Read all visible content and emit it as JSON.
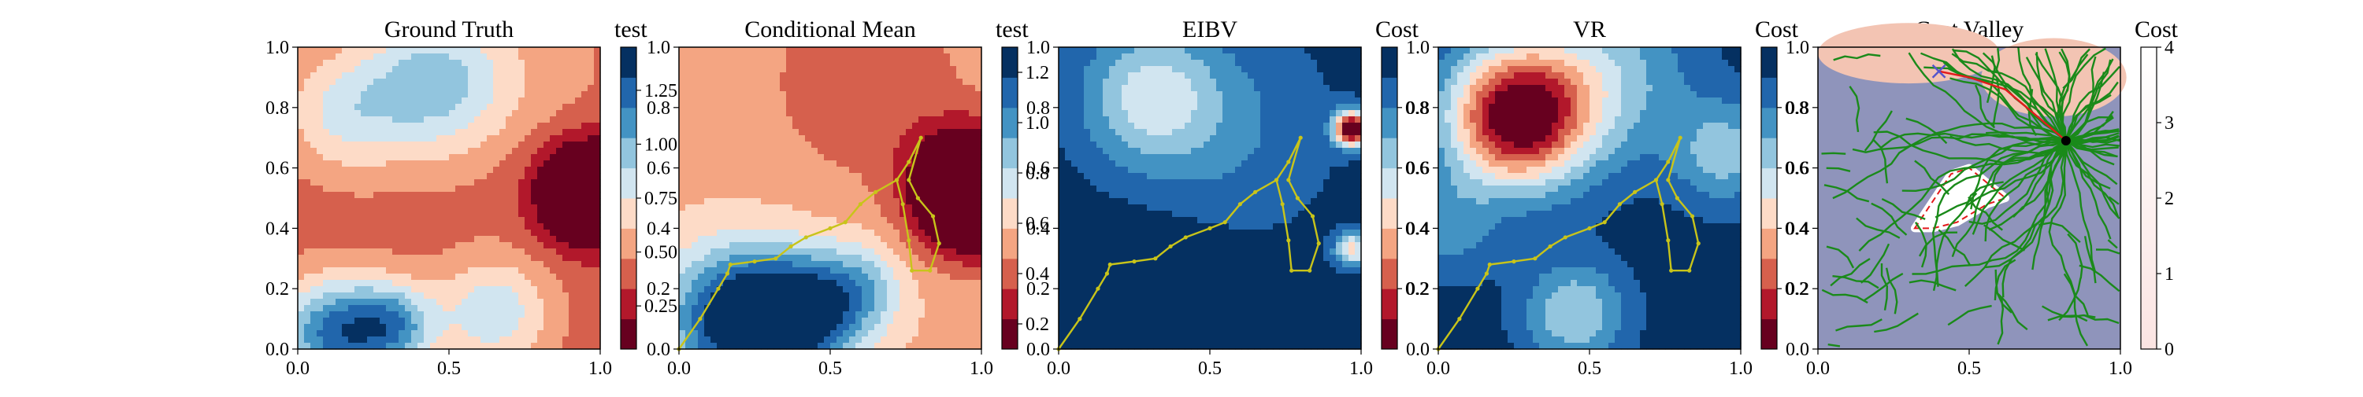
{
  "palette": [
    "#67001f",
    "#b2182b",
    "#d6604d",
    "#f4a582",
    "#fddbc7",
    "#d1e5f0",
    "#92c5de",
    "#4393c3",
    "#2166ac",
    "#053061"
  ],
  "chart_data": [
    {
      "id": "p1",
      "type": "heatmap",
      "title": "Ground Truth",
      "colorbar_label": "test",
      "xlim": [
        0,
        1
      ],
      "ylim": [
        0,
        1
      ],
      "x_ticks": [
        "0.0",
        "0.5",
        "1.0"
      ],
      "y_ticks": [
        "0.0",
        "0.2",
        "0.4",
        "0.6",
        "0.8",
        "1.0"
      ],
      "colorbar_ticks": [
        "0.25",
        "0.50",
        "0.75",
        "1.00",
        "1.25"
      ],
      "colorbar_range": [
        0.05,
        1.45
      ],
      "field": {
        "base": 0.4,
        "blobs": [
          {
            "x": 0.96,
            "y": 0.52,
            "amp": -0.95,
            "s": 0.11
          },
          {
            "x": 0.45,
            "y": 0.88,
            "amp": 0.55,
            "s": 0.17
          },
          {
            "x": 0.15,
            "y": 0.78,
            "amp": 0.35,
            "s": 0.14
          },
          {
            "x": 0.12,
            "y": 0.05,
            "amp": 0.8,
            "s": 0.13
          },
          {
            "x": 0.32,
            "y": 0.08,
            "amp": 0.6,
            "s": 0.1
          },
          {
            "x": 0.65,
            "y": 0.12,
            "amp": 0.45,
            "s": 0.13
          },
          {
            "x": 0.8,
            "y": 0.92,
            "amp": 0.1,
            "s": 0.2
          }
        ]
      },
      "path": []
    },
    {
      "id": "p2",
      "type": "heatmap",
      "title": "Conditional Mean",
      "colorbar_label": "test",
      "xlim": [
        0,
        1
      ],
      "ylim": [
        0,
        1
      ],
      "x_ticks": [
        "0.0",
        "0.5",
        "1.0"
      ],
      "y_ticks": [
        "0.0",
        "0.2",
        "0.4",
        "0.6",
        "0.8",
        "1.0"
      ],
      "colorbar_ticks": [
        "0.2",
        "0.4",
        "0.6",
        "0.8",
        "1.0",
        "1.2"
      ],
      "colorbar_range": [
        0.1,
        1.3
      ],
      "field": {
        "base": 0.55,
        "blobs": [
          {
            "x": 0.97,
            "y": 0.52,
            "amp": -1.15,
            "s": 0.13
          },
          {
            "x": 0.62,
            "y": 0.88,
            "amp": -0.2,
            "s": 0.22
          },
          {
            "x": 0.2,
            "y": 0.1,
            "amp": 0.8,
            "s": 0.16
          },
          {
            "x": 0.42,
            "y": 0.12,
            "amp": 0.6,
            "s": 0.13
          },
          {
            "x": 0.6,
            "y": 0.2,
            "amp": 0.3,
            "s": 0.1
          }
        ]
      },
      "path": [
        [
          0,
          0
        ],
        [
          0.07,
          0.1
        ],
        [
          0.13,
          0.2
        ],
        [
          0.16,
          0.25
        ],
        [
          0.17,
          0.28
        ],
        [
          0.25,
          0.29
        ],
        [
          0.32,
          0.3
        ],
        [
          0.37,
          0.34
        ],
        [
          0.42,
          0.37
        ],
        [
          0.5,
          0.4
        ],
        [
          0.55,
          0.42
        ],
        [
          0.6,
          0.48
        ],
        [
          0.65,
          0.52
        ],
        [
          0.72,
          0.56
        ],
        [
          0.76,
          0.62
        ],
        [
          0.8,
          0.7
        ],
        [
          0.76,
          0.56
        ],
        [
          0.79,
          0.5
        ],
        [
          0.84,
          0.44
        ],
        [
          0.86,
          0.35
        ],
        [
          0.83,
          0.26
        ],
        [
          0.77,
          0.26
        ],
        [
          0.76,
          0.36
        ],
        [
          0.74,
          0.48
        ],
        [
          0.72,
          0.56
        ]
      ]
    },
    {
      "id": "p3",
      "type": "heatmap",
      "title": "EIBV",
      "colorbar_label": "Cost",
      "xlim": [
        0,
        1
      ],
      "ylim": [
        0,
        1
      ],
      "x_ticks": [
        "0.0",
        "0.5",
        "1.0"
      ],
      "y_ticks": [
        "0.0",
        "0.2",
        "0.4",
        "0.6",
        "0.8",
        "1.0"
      ],
      "colorbar_ticks": [
        "0.2",
        "0.4",
        "0.6",
        "0.8"
      ],
      "colorbar_range": [
        0.0,
        1.0
      ],
      "field": {
        "base": 0.95,
        "blobs": [
          {
            "x": 0.3,
            "y": 0.84,
            "amp": -0.35,
            "s": 0.16
          },
          {
            "x": 0.55,
            "y": 0.72,
            "amp": -0.15,
            "s": 0.25
          },
          {
            "x": 0.97,
            "y": 0.73,
            "amp": -1.0,
            "s": 0.04
          },
          {
            "x": 0.97,
            "y": 0.33,
            "amp": -0.5,
            "s": 0.04
          },
          {
            "x": 0.3,
            "y": 0.1,
            "amp": 0.15,
            "s": 0.2
          }
        ]
      },
      "path": [
        [
          0,
          0
        ],
        [
          0.07,
          0.1
        ],
        [
          0.13,
          0.2
        ],
        [
          0.16,
          0.25
        ],
        [
          0.17,
          0.28
        ],
        [
          0.25,
          0.29
        ],
        [
          0.32,
          0.3
        ],
        [
          0.37,
          0.34
        ],
        [
          0.42,
          0.37
        ],
        [
          0.5,
          0.4
        ],
        [
          0.55,
          0.42
        ],
        [
          0.6,
          0.48
        ],
        [
          0.65,
          0.52
        ],
        [
          0.72,
          0.56
        ],
        [
          0.76,
          0.62
        ],
        [
          0.8,
          0.7
        ],
        [
          0.76,
          0.56
        ],
        [
          0.79,
          0.5
        ],
        [
          0.84,
          0.44
        ],
        [
          0.86,
          0.35
        ],
        [
          0.83,
          0.26
        ],
        [
          0.77,
          0.26
        ],
        [
          0.76,
          0.36
        ],
        [
          0.74,
          0.48
        ],
        [
          0.72,
          0.56
        ]
      ]
    },
    {
      "id": "p4",
      "type": "heatmap",
      "title": "VR",
      "colorbar_label": "Cost",
      "xlim": [
        0,
        1
      ],
      "ylim": [
        0,
        1
      ],
      "x_ticks": [
        "0.0",
        "0.5",
        "1.0"
      ],
      "y_ticks": [
        "0.0",
        "0.2",
        "0.4",
        "0.6",
        "0.8",
        "1.0"
      ],
      "colorbar_ticks": [
        "0.2",
        "0.4",
        "0.6",
        "0.8"
      ],
      "colorbar_range": [
        0.0,
        1.0
      ],
      "field": {
        "base": 0.95,
        "blobs": [
          {
            "x": 0.26,
            "y": 0.77,
            "amp": -0.95,
            "s": 0.16
          },
          {
            "x": 0.55,
            "y": 0.9,
            "amp": -0.3,
            "s": 0.2
          },
          {
            "x": 0.45,
            "y": 0.12,
            "amp": -0.35,
            "s": 0.12
          },
          {
            "x": 0.95,
            "y": 0.65,
            "amp": -0.3,
            "s": 0.12
          },
          {
            "x": 0.02,
            "y": 0.4,
            "amp": -0.2,
            "s": 0.12
          }
        ]
      },
      "path": [
        [
          0,
          0
        ],
        [
          0.07,
          0.1
        ],
        [
          0.13,
          0.2
        ],
        [
          0.16,
          0.25
        ],
        [
          0.17,
          0.28
        ],
        [
          0.25,
          0.29
        ],
        [
          0.32,
          0.3
        ],
        [
          0.37,
          0.34
        ],
        [
          0.42,
          0.37
        ],
        [
          0.5,
          0.4
        ],
        [
          0.55,
          0.42
        ],
        [
          0.6,
          0.48
        ],
        [
          0.65,
          0.52
        ],
        [
          0.72,
          0.56
        ],
        [
          0.76,
          0.62
        ],
        [
          0.8,
          0.7
        ],
        [
          0.76,
          0.56
        ],
        [
          0.79,
          0.5
        ],
        [
          0.84,
          0.44
        ],
        [
          0.86,
          0.35
        ],
        [
          0.83,
          0.26
        ],
        [
          0.77,
          0.26
        ],
        [
          0.76,
          0.36
        ],
        [
          0.74,
          0.48
        ],
        [
          0.72,
          0.56
        ]
      ]
    },
    {
      "id": "p5",
      "type": "heatmap",
      "title": "Cost Valley",
      "colorbar_label": "Cost",
      "xlim": [
        0,
        1
      ],
      "ylim": [
        0,
        1
      ],
      "x_ticks": [
        "0.0",
        "0.5",
        "1.0"
      ],
      "y_ticks": [
        "0.0",
        "0.2",
        "0.4",
        "0.6",
        "0.8",
        "1.0"
      ],
      "colorbar_ticks": [
        "0",
        "1",
        "2",
        "3",
        "4"
      ],
      "colorbar_range": [
        0,
        4
      ],
      "background_color": "#8f94bb",
      "hot_region_color": "#f3c4b3",
      "tree_color": "#1a8a1a",
      "start_marker": {
        "x": 0.82,
        "y": 0.69
      },
      "goal_marker": {
        "x": 0.4,
        "y": 0.92
      },
      "obstacle_polygon": [
        [
          0.32,
          0.4
        ],
        [
          0.44,
          0.58
        ],
        [
          0.5,
          0.6
        ],
        [
          0.62,
          0.5
        ],
        [
          0.56,
          0.48
        ],
        [
          0.46,
          0.42
        ],
        [
          0.38,
          0.4
        ]
      ],
      "planned_path": [
        [
          0.82,
          0.69
        ],
        [
          0.62,
          0.86
        ],
        [
          0.5,
          0.9
        ],
        [
          0.4,
          0.92
        ]
      ]
    }
  ]
}
